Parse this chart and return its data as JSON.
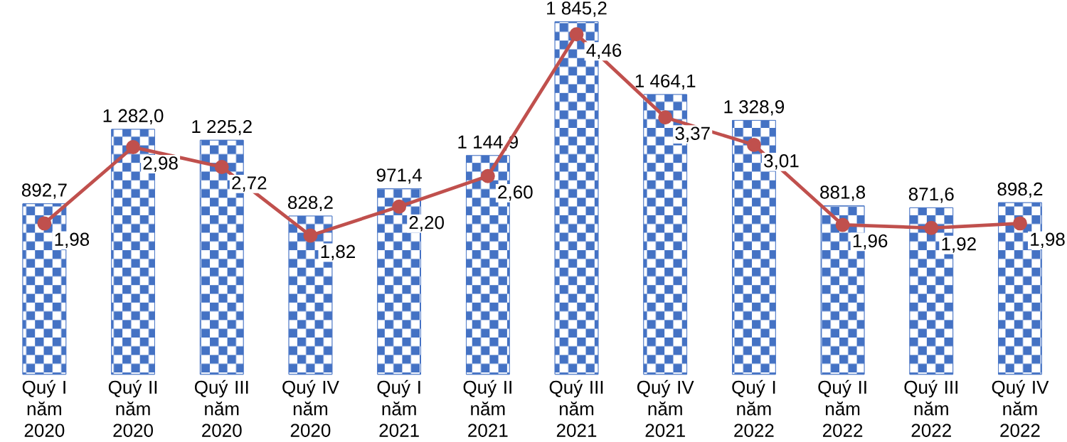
{
  "chart_data": {
    "type": "bar",
    "categories": [
      "Quý I năm 2020",
      "Quý II năm 2020",
      "Quý III năm 2020",
      "Quý IV năm 2020",
      "Quý I năm 2021",
      "Quý II năm 2021",
      "Quý III năm 2021",
      "Quý IV năm 2021",
      "Quý I năm 2022",
      "Quý II năm 2022",
      "Quý III năm 2022",
      "Quý IV năm 2022"
    ],
    "series": [
      {
        "color": "#4472c4",
        "values": [
          892.7,
          1282.0,
          1225.2,
          828.2,
          971.4,
          1144.9,
          1845.2,
          1464.1,
          1328.9,
          881.8,
          871.6,
          898.2
        ],
        "value_labels": [
          "892,7",
          "1 282,0",
          "1 225,2",
          "828,2",
          "971,4",
          "1 144,9",
          "1 845,2",
          "1 464,1",
          "1 328,9",
          "881,8",
          "871,6",
          "898,2"
        ]
      },
      {
        "type": "line",
        "axis": "y2",
        "color": "#c0504d",
        "marker": "circle",
        "values": [
          1.98,
          2.98,
          2.72,
          1.82,
          2.2,
          2.6,
          4.46,
          3.37,
          3.01,
          1.96,
          1.92,
          1.98
        ],
        "value_labels": [
          "1,98",
          "2,98",
          "2,72",
          "1,82",
          "2,20",
          "2,60",
          "4,46",
          "3,37",
          "3,01",
          "1,96",
          "1,92",
          "1,98"
        ]
      }
    ]
  }
}
